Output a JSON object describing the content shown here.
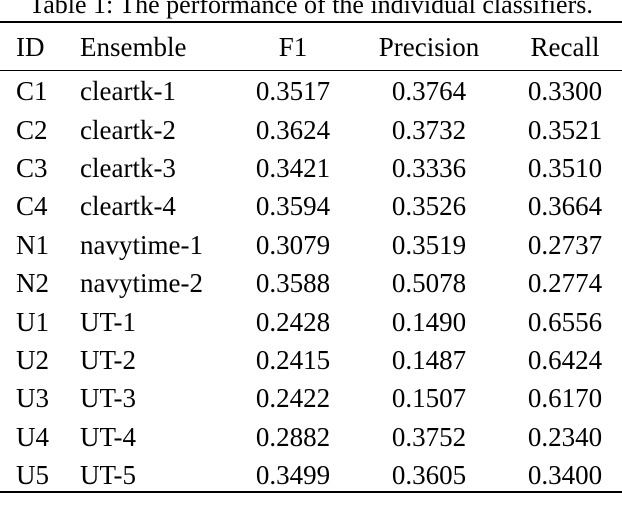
{
  "caption": "Table 1: The performance of the individual classifiers.",
  "table": {
    "columns": [
      "ID",
      "Ensemble",
      "F1",
      "Precision",
      "Recall"
    ],
    "rows": [
      [
        "C1",
        "cleartk-1",
        "0.3517",
        "0.3764",
        "0.3300"
      ],
      [
        "C2",
        "cleartk-2",
        "0.3624",
        "0.3732",
        "0.3521"
      ],
      [
        "C3",
        "cleartk-3",
        "0.3421",
        "0.3336",
        "0.3510"
      ],
      [
        "C4",
        "cleartk-4",
        "0.3594",
        "0.3526",
        "0.3664"
      ],
      [
        "N1",
        "navytime-1",
        "0.3079",
        "0.3519",
        "0.2737"
      ],
      [
        "N2",
        "navytime-2",
        "0.3588",
        "0.5078",
        "0.2774"
      ],
      [
        "U1",
        "UT-1",
        "0.2428",
        "0.1490",
        "0.6556"
      ],
      [
        "U2",
        "UT-2",
        "0.2415",
        "0.1487",
        "0.6424"
      ],
      [
        "U3",
        "UT-3",
        "0.2422",
        "0.1507",
        "0.6170"
      ],
      [
        "U4",
        "UT-4",
        "0.2882",
        "0.3752",
        "0.2340"
      ],
      [
        "U5",
        "UT-5",
        "0.3499",
        "0.3605",
        "0.3400"
      ]
    ]
  },
  "colors": {
    "text": "#000000",
    "background": "#ffffff",
    "rule": "#000000"
  }
}
